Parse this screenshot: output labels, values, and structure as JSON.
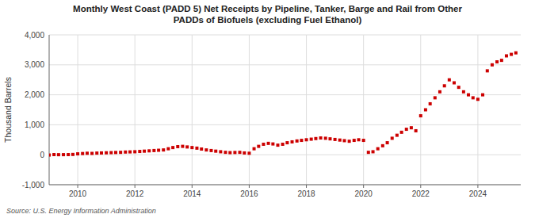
{
  "chart_data": {
    "type": "scatter",
    "title": "Monthly West Coast (PADD 5) Net Receipts by Pipeline, Tanker, Barge and Rail from Other\nPADDs of Biofuels (excluding Fuel Ethanol)",
    "ylabel": "Thousand Barrels",
    "source": "Source: U.S. Energy Information Administration",
    "color": "#cc0000",
    "marker": "square",
    "grid": true,
    "xlim": [
      2009.0,
      2025.5
    ],
    "xticks": [
      2010,
      2012,
      2014,
      2016,
      2018,
      2020,
      2022,
      2024
    ],
    "ylim": [
      -1000,
      4000
    ],
    "yticks": [
      {
        "value": -1000,
        "label": "-1,000"
      },
      0,
      {
        "value": 1000,
        "label": "1,000"
      },
      {
        "value": 2000,
        "label": "2,000"
      },
      {
        "value": 3000,
        "label": "3,000"
      },
      {
        "value": 4000,
        "label": "4,000"
      }
    ],
    "x": [
      2009.0,
      2009.17,
      2009.33,
      2009.5,
      2009.67,
      2009.83,
      2010.0,
      2010.17,
      2010.33,
      2010.5,
      2010.67,
      2010.83,
      2011.0,
      2011.17,
      2011.33,
      2011.5,
      2011.67,
      2011.83,
      2012.0,
      2012.17,
      2012.33,
      2012.5,
      2012.67,
      2012.83,
      2013.0,
      2013.17,
      2013.33,
      2013.5,
      2013.67,
      2013.83,
      2014.0,
      2014.17,
      2014.33,
      2014.5,
      2014.67,
      2014.83,
      2015.0,
      2015.17,
      2015.33,
      2015.5,
      2015.67,
      2015.83,
      2016.0,
      2016.17,
      2016.33,
      2016.5,
      2016.67,
      2016.83,
      2017.0,
      2017.17,
      2017.33,
      2017.5,
      2017.67,
      2017.83,
      2018.0,
      2018.17,
      2018.33,
      2018.5,
      2018.67,
      2018.83,
      2019.0,
      2019.17,
      2019.33,
      2019.5,
      2019.67,
      2019.83,
      2020.0,
      2020.17,
      2020.33,
      2020.5,
      2020.67,
      2020.83,
      2021.0,
      2021.17,
      2021.33,
      2021.5,
      2021.67,
      2021.83,
      2022.0,
      2022.17,
      2022.33,
      2022.5,
      2022.67,
      2022.83,
      2023.0,
      2023.17,
      2023.33,
      2023.5,
      2023.67,
      2023.83,
      2024.0,
      2024.17,
      2024.33,
      2024.5,
      2024.67,
      2024.83,
      2025.0,
      2025.17,
      2025.33
    ],
    "values": [
      -10,
      5,
      2,
      3,
      5,
      10,
      30,
      40,
      50,
      45,
      55,
      60,
      65,
      70,
      75,
      80,
      90,
      95,
      100,
      110,
      120,
      130,
      140,
      150,
      160,
      200,
      240,
      270,
      280,
      260,
      240,
      220,
      190,
      160,
      140,
      120,
      100,
      80,
      70,
      75,
      80,
      60,
      50,
      200,
      280,
      350,
      380,
      360,
      320,
      350,
      400,
      430,
      460,
      480,
      500,
      520,
      540,
      560,
      550,
      530,
      510,
      490,
      470,
      450,
      480,
      500,
      480,
      80,
      100,
      200,
      300,
      400,
      550,
      650,
      750,
      850,
      900,
      800,
      1300,
      1500,
      1700,
      1900,
      2100,
      2300,
      2500,
      2400,
      2250,
      2100,
      2000,
      1900,
      1850,
      2000,
      2800,
      3000,
      3100,
      3150,
      3300,
      3350,
      3400
    ]
  }
}
